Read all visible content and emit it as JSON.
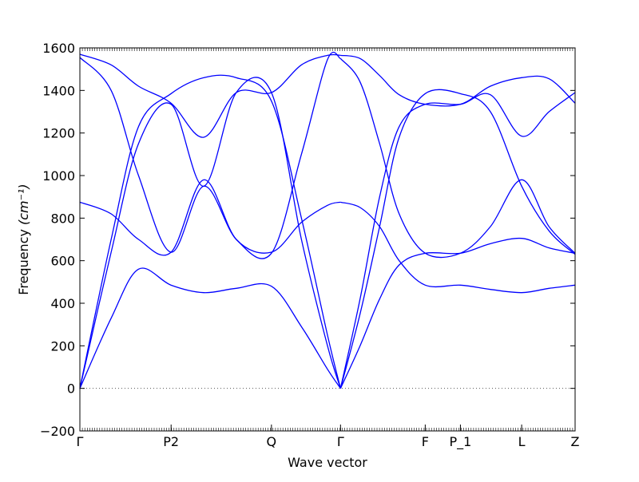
{
  "chart_data": {
    "type": "line",
    "title": "",
    "xlabel": "Wave vector",
    "ylabel": "Frequency",
    "ylabel_unit": "(cm⁻¹)",
    "ylim": [
      -200,
      1600
    ],
    "yticks": [
      -200,
      0,
      200,
      400,
      600,
      800,
      1000,
      1200,
      1400,
      1600
    ],
    "xlim": [
      0,
      3.8
    ],
    "xticks": [
      {
        "x": 0.0,
        "label": "Γ"
      },
      {
        "x": 0.7,
        "label": "P2"
      },
      {
        "x": 1.47,
        "label": "Q"
      },
      {
        "x": 2.0,
        "label": "Γ"
      },
      {
        "x": 2.65,
        "label": "F"
      },
      {
        "x": 2.92,
        "label": "P_1"
      },
      {
        "x": 3.39,
        "label": "L"
      },
      {
        "x": 3.8,
        "label": "Z"
      }
    ],
    "zero_line": true,
    "series_color": "#0000ff",
    "series": [
      {
        "x": [
          0,
          0.24,
          0.45,
          0.7,
          0.95,
          1.2,
          1.47,
          1.7,
          1.9,
          2.0
        ],
        "values": [
          1570,
          1520,
          1420,
          1340,
          1180,
          1390,
          1390,
          1520,
          1565,
          1565
        ]
      },
      {
        "x": [
          0,
          0.24,
          0.45,
          0.7,
          0.95,
          1.2,
          1.47,
          1.7,
          1.9,
          2.0
        ],
        "values": [
          1555,
          1400,
          1000,
          640,
          950,
          700,
          635,
          1100,
          1545,
          1550
        ]
      },
      {
        "x": [
          0,
          0.24,
          0.45,
          0.7,
          0.95,
          1.2,
          1.47,
          1.7,
          1.9,
          2.0
        ],
        "values": [
          875,
          820,
          700,
          640,
          980,
          700,
          640,
          780,
          860,
          875
        ]
      },
      {
        "x": [
          0,
          0.24,
          0.45,
          0.7,
          0.95,
          1.2,
          1.47,
          1.7,
          1.9,
          2.0
        ],
        "values": [
          0,
          700,
          1230,
          1385,
          1460,
          1460,
          1350,
          800,
          250,
          0
        ]
      },
      {
        "x": [
          0,
          0.24,
          0.45,
          0.7,
          0.95,
          1.2,
          1.47,
          1.7,
          1.9,
          2.0
        ],
        "values": [
          0,
          640,
          1150,
          1335,
          950,
          1390,
          1390,
          700,
          200,
          0
        ]
      },
      {
        "x": [
          0,
          0.24,
          0.45,
          0.7,
          0.95,
          1.2,
          1.47,
          1.7,
          1.9,
          2.0
        ],
        "values": [
          0,
          330,
          560,
          485,
          450,
          470,
          480,
          290,
          90,
          0
        ]
      },
      {
        "x": [
          2.0,
          2.15,
          2.3,
          2.45,
          2.65,
          2.92,
          3.15,
          3.39,
          3.6,
          3.8
        ],
        "values": [
          1565,
          1550,
          1470,
          1380,
          1335,
          1335,
          1420,
          1460,
          1455,
          1340
        ]
      },
      {
        "x": [
          2.0,
          2.15,
          2.3,
          2.45,
          2.65,
          2.92,
          3.15,
          3.39,
          3.6,
          3.8
        ],
        "values": [
          0,
          420,
          900,
          1230,
          1335,
          1335,
          1380,
          1185,
          1300,
          1390
        ]
      },
      {
        "x": [
          2.0,
          2.15,
          2.3,
          2.45,
          2.65,
          2.92,
          3.15,
          3.39,
          3.6,
          3.8
        ],
        "values": [
          1550,
          1440,
          1150,
          820,
          635,
          635,
          760,
          980,
          760,
          635
        ]
      },
      {
        "x": [
          2.0,
          2.15,
          2.3,
          2.45,
          2.65,
          2.92,
          3.15,
          3.39,
          3.6,
          3.8
        ],
        "values": [
          875,
          850,
          760,
          600,
          485,
          485,
          465,
          450,
          470,
          485
        ]
      },
      {
        "x": [
          2.0,
          2.15,
          2.3,
          2.45,
          2.65,
          2.92,
          3.15,
          3.39,
          3.6,
          3.8
        ],
        "values": [
          0,
          350,
          760,
          1180,
          1385,
          1385,
          1300,
          950,
          740,
          630
        ]
      },
      {
        "x": [
          2.0,
          2.15,
          2.3,
          2.45,
          2.65,
          2.92,
          3.15,
          3.39,
          3.6,
          3.8
        ],
        "values": [
          0,
          200,
          420,
          580,
          635,
          635,
          680,
          705,
          660,
          635
        ]
      }
    ]
  }
}
